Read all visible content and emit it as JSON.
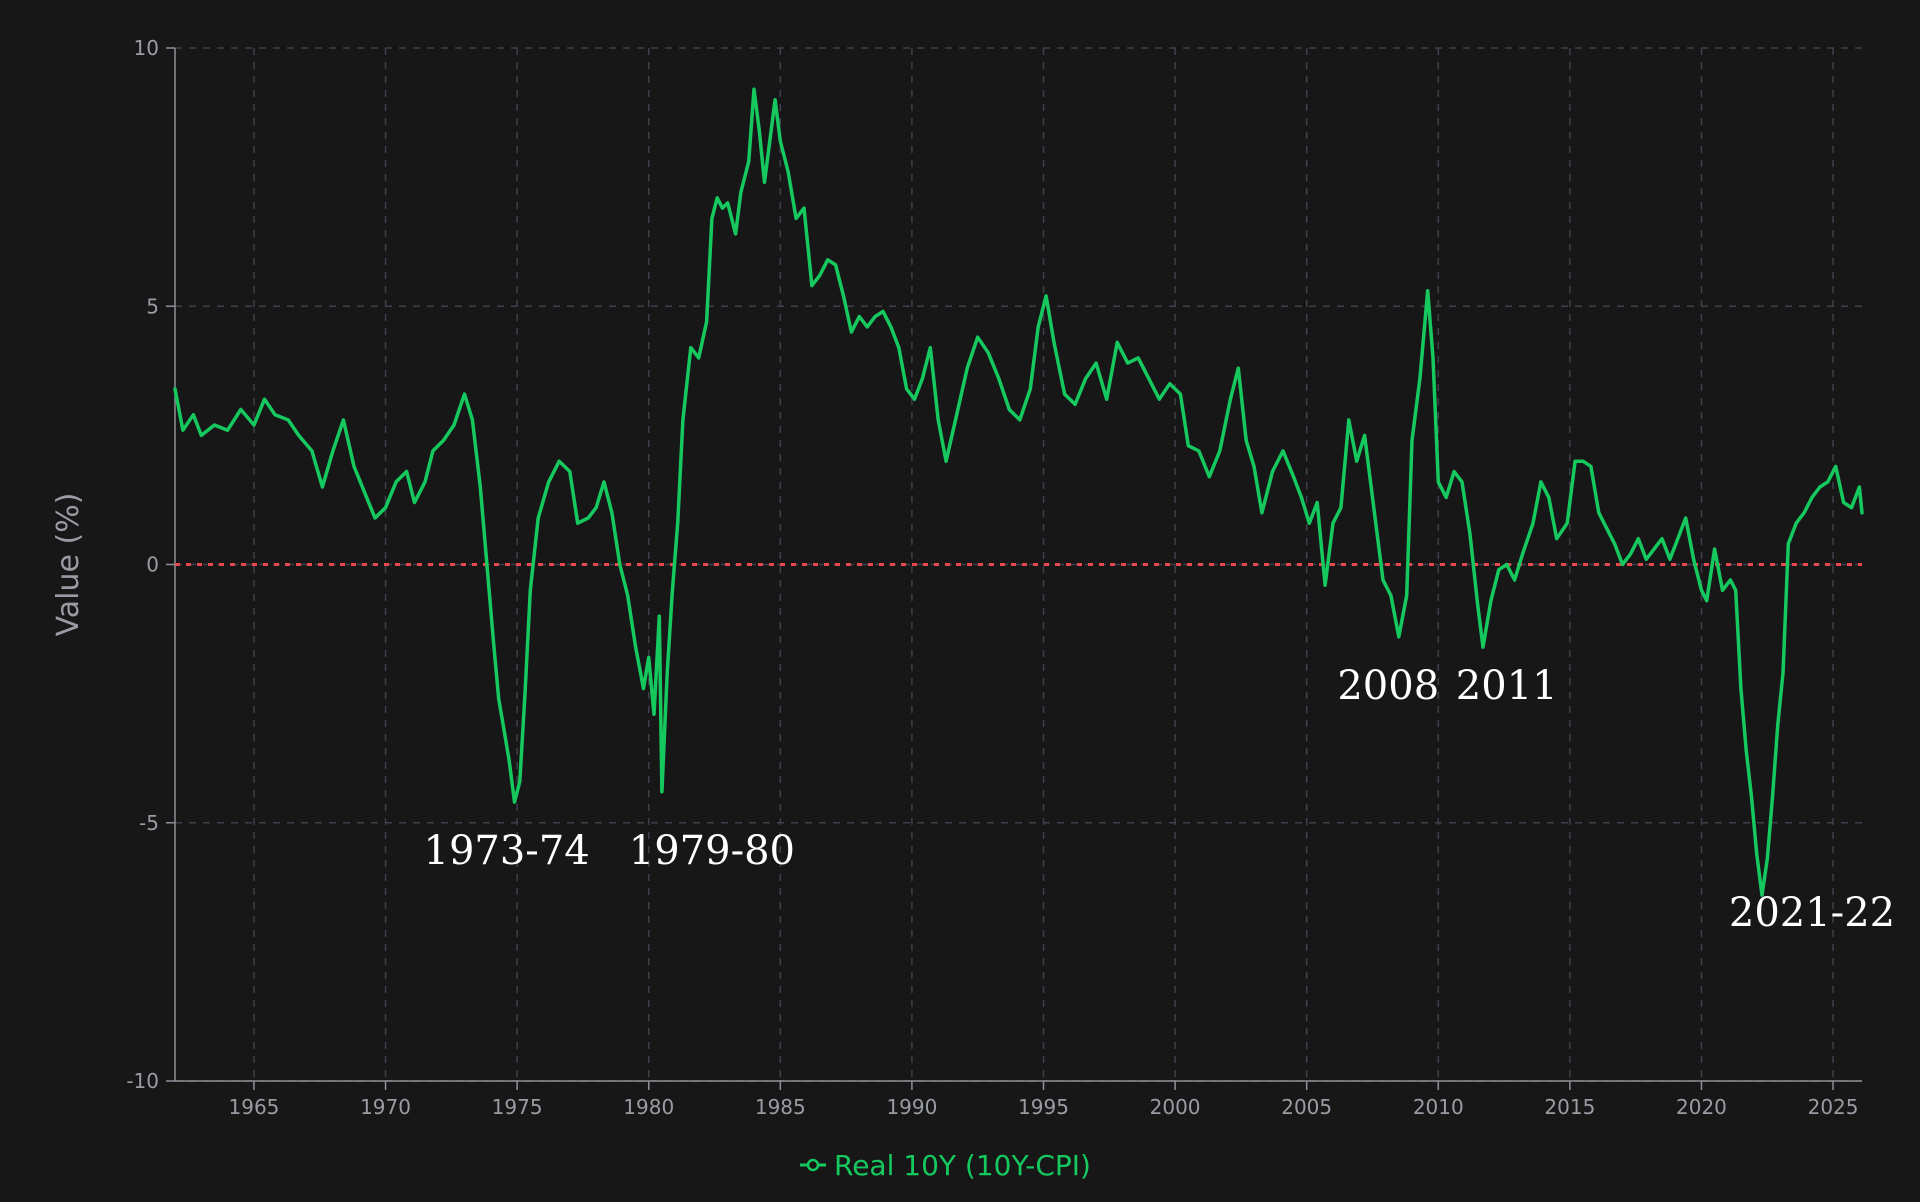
{
  "chart_data": {
    "type": "line",
    "title": "",
    "xlabel": "",
    "ylabel": "Value (%)",
    "xlim": [
      1962.0,
      2026.1
    ],
    "ylim": [
      -10,
      10
    ],
    "x_ticks": [
      1965,
      1970,
      1975,
      1980,
      1985,
      1990,
      1995,
      2000,
      2005,
      2010,
      2015,
      2020,
      2025
    ],
    "y_ticks": [
      -10,
      -5,
      0,
      5,
      10
    ],
    "grid": true,
    "legend_position": "bottom-center",
    "reference_line": {
      "y": 0,
      "color": "#e5484d",
      "style": "dotted"
    },
    "series": [
      {
        "name": "Real 10Y (10Y-CPI)",
        "color": "#16c95f",
        "points": [
          [
            1962.0,
            3.4
          ],
          [
            1962.3,
            2.6
          ],
          [
            1962.7,
            2.9
          ],
          [
            1963.0,
            2.5
          ],
          [
            1963.5,
            2.7
          ],
          [
            1964.0,
            2.6
          ],
          [
            1964.5,
            3.0
          ],
          [
            1965.0,
            2.7
          ],
          [
            1965.4,
            3.2
          ],
          [
            1965.8,
            2.9
          ],
          [
            1966.3,
            2.8
          ],
          [
            1966.7,
            2.5
          ],
          [
            1967.2,
            2.2
          ],
          [
            1967.6,
            1.5
          ],
          [
            1968.0,
            2.2
          ],
          [
            1968.4,
            2.8
          ],
          [
            1968.8,
            1.9
          ],
          [
            1969.2,
            1.4
          ],
          [
            1969.6,
            0.9
          ],
          [
            1970.0,
            1.1
          ],
          [
            1970.4,
            1.6
          ],
          [
            1970.8,
            1.8
          ],
          [
            1971.1,
            1.2
          ],
          [
            1971.5,
            1.6
          ],
          [
            1971.8,
            2.2
          ],
          [
            1972.2,
            2.4
          ],
          [
            1972.6,
            2.7
          ],
          [
            1973.0,
            3.3
          ],
          [
            1973.3,
            2.8
          ],
          [
            1973.6,
            1.5
          ],
          [
            1973.8,
            0.3
          ],
          [
            1974.1,
            -1.5
          ],
          [
            1974.3,
            -2.6
          ],
          [
            1974.5,
            -3.2
          ],
          [
            1974.7,
            -3.8
          ],
          [
            1974.9,
            -4.6
          ],
          [
            1975.1,
            -4.2
          ],
          [
            1975.3,
            -2.5
          ],
          [
            1975.5,
            -0.5
          ],
          [
            1975.8,
            0.9
          ],
          [
            1976.2,
            1.6
          ],
          [
            1976.6,
            2.0
          ],
          [
            1977.0,
            1.8
          ],
          [
            1977.3,
            0.8
          ],
          [
            1977.7,
            0.9
          ],
          [
            1978.0,
            1.1
          ],
          [
            1978.3,
            1.6
          ],
          [
            1978.6,
            1.0
          ],
          [
            1978.9,
            0.0
          ],
          [
            1979.2,
            -0.6
          ],
          [
            1979.5,
            -1.6
          ],
          [
            1979.8,
            -2.4
          ],
          [
            1980.0,
            -1.8
          ],
          [
            1980.2,
            -2.9
          ],
          [
            1980.4,
            -1.0
          ],
          [
            1980.5,
            -4.4
          ],
          [
            1980.7,
            -2.1
          ],
          [
            1980.9,
            -0.5
          ],
          [
            1981.1,
            0.8
          ],
          [
            1981.3,
            2.8
          ],
          [
            1981.6,
            4.2
          ],
          [
            1981.9,
            4.0
          ],
          [
            1982.2,
            4.7
          ],
          [
            1982.4,
            6.7
          ],
          [
            1982.6,
            7.1
          ],
          [
            1982.8,
            6.9
          ],
          [
            1983.0,
            7.0
          ],
          [
            1983.3,
            6.4
          ],
          [
            1983.5,
            7.2
          ],
          [
            1983.8,
            7.8
          ],
          [
            1984.0,
            9.2
          ],
          [
            1984.2,
            8.4
          ],
          [
            1984.4,
            7.4
          ],
          [
            1984.6,
            8.2
          ],
          [
            1984.8,
            9.0
          ],
          [
            1985.0,
            8.2
          ],
          [
            1985.3,
            7.6
          ],
          [
            1985.6,
            6.7
          ],
          [
            1985.9,
            6.9
          ],
          [
            1986.2,
            5.4
          ],
          [
            1986.5,
            5.6
          ],
          [
            1986.8,
            5.9
          ],
          [
            1987.1,
            5.8
          ],
          [
            1987.4,
            5.2
          ],
          [
            1987.7,
            4.5
          ],
          [
            1988.0,
            4.8
          ],
          [
            1988.3,
            4.6
          ],
          [
            1988.6,
            4.8
          ],
          [
            1988.9,
            4.9
          ],
          [
            1989.2,
            4.6
          ],
          [
            1989.5,
            4.2
          ],
          [
            1989.8,
            3.4
          ],
          [
            1990.1,
            3.2
          ],
          [
            1990.4,
            3.6
          ],
          [
            1990.7,
            4.2
          ],
          [
            1991.0,
            2.8
          ],
          [
            1991.3,
            2.0
          ],
          [
            1991.7,
            2.9
          ],
          [
            1992.1,
            3.8
          ],
          [
            1992.5,
            4.4
          ],
          [
            1992.9,
            4.1
          ],
          [
            1993.3,
            3.6
          ],
          [
            1993.7,
            3.0
          ],
          [
            1994.1,
            2.8
          ],
          [
            1994.5,
            3.4
          ],
          [
            1994.8,
            4.6
          ],
          [
            1995.1,
            5.2
          ],
          [
            1995.4,
            4.3
          ],
          [
            1995.8,
            3.3
          ],
          [
            1996.2,
            3.1
          ],
          [
            1996.6,
            3.6
          ],
          [
            1997.0,
            3.9
          ],
          [
            1997.4,
            3.2
          ],
          [
            1997.8,
            4.3
          ],
          [
            1998.2,
            3.9
          ],
          [
            1998.6,
            4.0
          ],
          [
            1999.0,
            3.6
          ],
          [
            1999.4,
            3.2
          ],
          [
            1999.8,
            3.5
          ],
          [
            2000.2,
            3.3
          ],
          [
            2000.5,
            2.3
          ],
          [
            2000.9,
            2.2
          ],
          [
            2001.3,
            1.7
          ],
          [
            2001.7,
            2.2
          ],
          [
            2002.1,
            3.2
          ],
          [
            2002.4,
            3.8
          ],
          [
            2002.7,
            2.4
          ],
          [
            2003.0,
            1.9
          ],
          [
            2003.3,
            1.0
          ],
          [
            2003.7,
            1.8
          ],
          [
            2004.1,
            2.2
          ],
          [
            2004.5,
            1.7
          ],
          [
            2004.8,
            1.3
          ],
          [
            2005.1,
            0.8
          ],
          [
            2005.4,
            1.2
          ],
          [
            2005.7,
            -0.4
          ],
          [
            2006.0,
            0.8
          ],
          [
            2006.3,
            1.1
          ],
          [
            2006.6,
            2.8
          ],
          [
            2006.9,
            2.0
          ],
          [
            2007.2,
            2.5
          ],
          [
            2007.6,
            0.9
          ],
          [
            2007.9,
            -0.3
          ],
          [
            2008.2,
            -0.6
          ],
          [
            2008.5,
            -1.4
          ],
          [
            2008.8,
            -0.6
          ],
          [
            2009.0,
            2.4
          ],
          [
            2009.3,
            3.6
          ],
          [
            2009.6,
            5.3
          ],
          [
            2009.8,
            4.0
          ],
          [
            2010.0,
            1.6
          ],
          [
            2010.3,
            1.3
          ],
          [
            2010.6,
            1.8
          ],
          [
            2010.9,
            1.6
          ],
          [
            2011.2,
            0.6
          ],
          [
            2011.5,
            -0.8
          ],
          [
            2011.7,
            -1.6
          ],
          [
            2012.0,
            -0.7
          ],
          [
            2012.3,
            -0.1
          ],
          [
            2012.6,
            0.0
          ],
          [
            2012.9,
            -0.3
          ],
          [
            2013.2,
            0.2
          ],
          [
            2013.6,
            0.8
          ],
          [
            2013.9,
            1.6
          ],
          [
            2014.2,
            1.3
          ],
          [
            2014.5,
            0.5
          ],
          [
            2014.9,
            0.8
          ],
          [
            2015.2,
            2.0
          ],
          [
            2015.5,
            2.0
          ],
          [
            2015.8,
            1.9
          ],
          [
            2016.1,
            1.0
          ],
          [
            2016.4,
            0.7
          ],
          [
            2016.7,
            0.4
          ],
          [
            2017.0,
            0.0
          ],
          [
            2017.3,
            0.2
          ],
          [
            2017.6,
            0.5
          ],
          [
            2017.9,
            0.1
          ],
          [
            2018.2,
            0.3
          ],
          [
            2018.5,
            0.5
          ],
          [
            2018.8,
            0.1
          ],
          [
            2019.1,
            0.5
          ],
          [
            2019.4,
            0.9
          ],
          [
            2019.7,
            0.1
          ],
          [
            2020.0,
            -0.5
          ],
          [
            2020.2,
            -0.7
          ],
          [
            2020.5,
            0.3
          ],
          [
            2020.8,
            -0.5
          ],
          [
            2021.1,
            -0.3
          ],
          [
            2021.3,
            -0.5
          ],
          [
            2021.5,
            -2.4
          ],
          [
            2021.7,
            -3.6
          ],
          [
            2021.9,
            -4.5
          ],
          [
            2022.1,
            -5.6
          ],
          [
            2022.3,
            -6.4
          ],
          [
            2022.5,
            -5.7
          ],
          [
            2022.7,
            -4.5
          ],
          [
            2022.9,
            -3.1
          ],
          [
            2023.1,
            -2.1
          ],
          [
            2023.3,
            0.4
          ],
          [
            2023.6,
            0.8
          ],
          [
            2023.9,
            1.0
          ],
          [
            2024.2,
            1.3
          ],
          [
            2024.5,
            1.5
          ],
          [
            2024.8,
            1.6
          ],
          [
            2025.1,
            1.9
          ],
          [
            2025.4,
            1.2
          ],
          [
            2025.7,
            1.1
          ],
          [
            2026.0,
            1.5
          ],
          [
            2026.1,
            1.0
          ]
        ]
      }
    ],
    "annotations": [
      {
        "text": "1973-74",
        "x": 1974.6,
        "y": -5.8
      },
      {
        "text": "1979-80",
        "x": 1982.4,
        "y": -5.8
      },
      {
        "text": "2008",
        "x": 2008.1,
        "y": -2.6
      },
      {
        "text": "2011",
        "x": 2012.6,
        "y": -2.6
      },
      {
        "text": "2021-22",
        "x": 2024.2,
        "y": -7.0
      }
    ]
  }
}
